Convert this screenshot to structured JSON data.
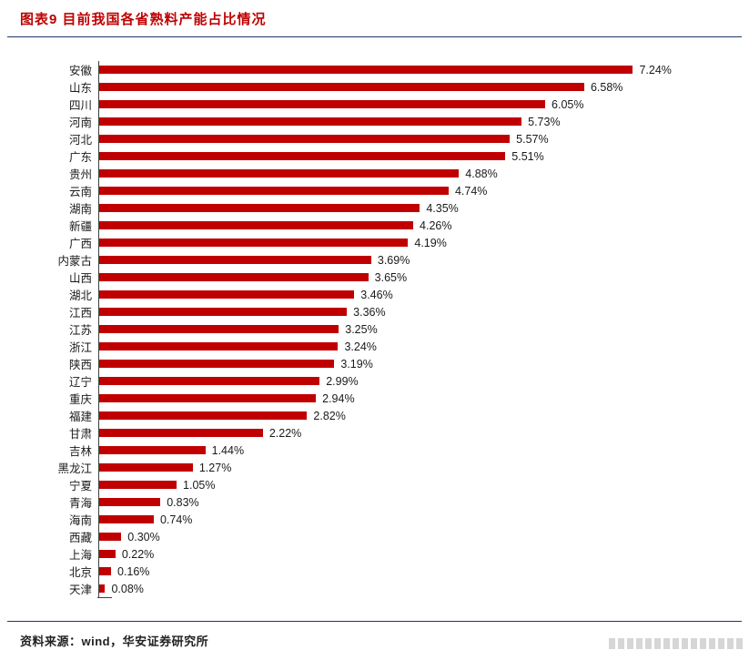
{
  "header": {
    "title": "图表9 目前我国各省熟料产能占比情况"
  },
  "footer": {
    "source": "资料来源：wind，华安证券研究所"
  },
  "chart_data": {
    "type": "bar",
    "orientation": "horizontal",
    "title": "图表9 目前我国各省熟料产能占比情况",
    "xlabel": "",
    "ylabel": "",
    "xlim": [
      0,
      8
    ],
    "grid": false,
    "legend": false,
    "bar_color": "#c00000",
    "categories": [
      "安徽",
      "山东",
      "四川",
      "河南",
      "河北",
      "广东",
      "贵州",
      "云南",
      "湖南",
      "新疆",
      "广西",
      "内蒙古",
      "山西",
      "湖北",
      "江西",
      "江苏",
      "浙江",
      "陕西",
      "辽宁",
      "重庆",
      "福建",
      "甘肃",
      "吉林",
      "黑龙江",
      "宁夏",
      "青海",
      "海南",
      "西藏",
      "上海",
      "北京",
      "天津"
    ],
    "values": [
      7.24,
      6.58,
      6.05,
      5.73,
      5.57,
      5.51,
      4.88,
      4.74,
      4.35,
      4.26,
      4.19,
      3.69,
      3.65,
      3.46,
      3.36,
      3.25,
      3.24,
      3.19,
      2.99,
      2.94,
      2.82,
      2.22,
      1.44,
      1.27,
      1.05,
      0.83,
      0.74,
      0.3,
      0.22,
      0.16,
      0.08
    ],
    "value_labels": [
      "7.24%",
      "6.58%",
      "6.05%",
      "5.73%",
      "5.57%",
      "5.51%",
      "4.88%",
      "4.74%",
      "4.35%",
      "4.26%",
      "4.19%",
      "3.69%",
      "3.65%",
      "3.46%",
      "3.36%",
      "3.25%",
      "3.24%",
      "3.19%",
      "2.99%",
      "2.94%",
      "2.82%",
      "2.22%",
      "1.44%",
      "1.27%",
      "1.05%",
      "0.83%",
      "0.74%",
      "0.30%",
      "0.22%",
      "0.16%",
      "0.08%"
    ]
  }
}
